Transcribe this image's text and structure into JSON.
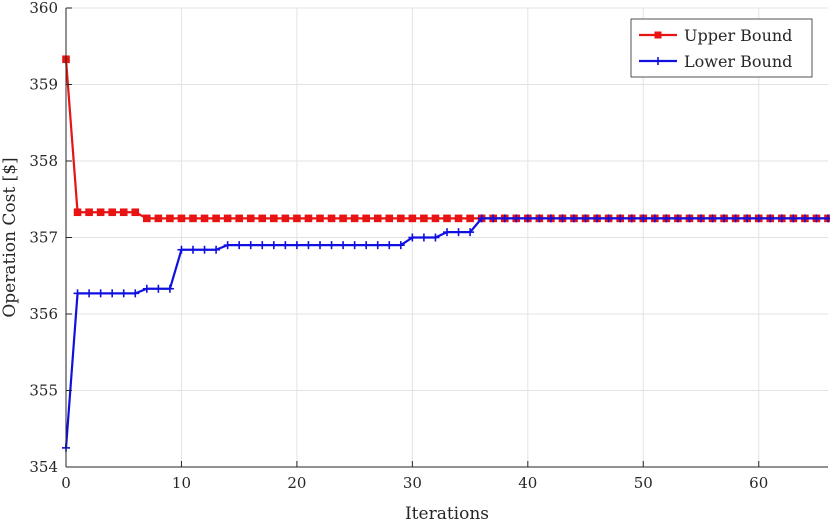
{
  "chart_data": {
    "type": "line",
    "title": "",
    "xlabel": "Iterations",
    "ylabel": "Operation Cost [$]",
    "xlim": [
      0,
      66
    ],
    "ylim": [
      354,
      360
    ],
    "xticks": [
      0,
      10,
      20,
      30,
      40,
      50,
      60
    ],
    "yticks": [
      354,
      355,
      356,
      357,
      358,
      359,
      360
    ],
    "grid": true,
    "legend_position": "top-right",
    "series": [
      {
        "name": "Upper Bound",
        "color": "#e81313",
        "marker": "square",
        "x": [
          0,
          1,
          2,
          3,
          4,
          5,
          6,
          7,
          8,
          9,
          10,
          11,
          12,
          13,
          14,
          15,
          16,
          17,
          18,
          19,
          20,
          21,
          22,
          23,
          24,
          25,
          26,
          27,
          28,
          29,
          30,
          31,
          32,
          33,
          34,
          35,
          36,
          37,
          38,
          39,
          40,
          41,
          42,
          43,
          44,
          45,
          46,
          47,
          48,
          49,
          50,
          51,
          52,
          53,
          54,
          55,
          56,
          57,
          58,
          59,
          60,
          61,
          62,
          63,
          64,
          65,
          66
        ],
        "y": [
          359.33,
          357.33,
          357.33,
          357.33,
          357.33,
          357.33,
          357.33,
          357.25,
          357.25,
          357.25,
          357.25,
          357.25,
          357.25,
          357.25,
          357.25,
          357.25,
          357.25,
          357.25,
          357.25,
          357.25,
          357.25,
          357.25,
          357.25,
          357.25,
          357.25,
          357.25,
          357.25,
          357.25,
          357.25,
          357.25,
          357.25,
          357.25,
          357.25,
          357.25,
          357.25,
          357.25,
          357.25,
          357.25,
          357.25,
          357.25,
          357.25,
          357.25,
          357.25,
          357.25,
          357.25,
          357.25,
          357.25,
          357.25,
          357.25,
          357.25,
          357.25,
          357.25,
          357.25,
          357.25,
          357.25,
          357.25,
          357.25,
          357.25,
          357.25,
          357.25,
          357.25,
          357.25,
          357.25,
          357.25,
          357.25,
          357.25,
          357.25
        ]
      },
      {
        "name": "Lower Bound",
        "color": "#1010e0",
        "marker": "plus",
        "x": [
          0,
          1,
          2,
          3,
          4,
          5,
          6,
          7,
          8,
          9,
          10,
          11,
          12,
          13,
          14,
          15,
          16,
          17,
          18,
          19,
          20,
          21,
          22,
          23,
          24,
          25,
          26,
          27,
          28,
          29,
          30,
          31,
          32,
          33,
          34,
          35,
          36,
          37,
          38,
          39,
          40,
          41,
          42,
          43,
          44,
          45,
          46,
          47,
          48,
          49,
          50,
          51,
          52,
          53,
          54,
          55,
          56,
          57,
          58,
          59,
          60,
          61,
          62,
          63,
          64,
          65,
          66
        ],
        "y": [
          354.25,
          356.27,
          356.27,
          356.27,
          356.27,
          356.27,
          356.27,
          356.33,
          356.33,
          356.33,
          356.84,
          356.84,
          356.84,
          356.84,
          356.9,
          356.9,
          356.9,
          356.9,
          356.9,
          356.9,
          356.9,
          356.9,
          356.9,
          356.9,
          356.9,
          356.9,
          356.9,
          356.9,
          356.9,
          356.9,
          357.0,
          357.0,
          357.0,
          357.07,
          357.07,
          357.07,
          357.25,
          357.25,
          357.25,
          357.25,
          357.25,
          357.25,
          357.25,
          357.25,
          357.25,
          357.25,
          357.25,
          357.25,
          357.25,
          357.25,
          357.25,
          357.25,
          357.25,
          357.25,
          357.25,
          357.25,
          357.25,
          357.25,
          357.25,
          357.25,
          357.25,
          357.25,
          357.25,
          357.25,
          357.25,
          357.25,
          357.25
        ]
      }
    ]
  }
}
